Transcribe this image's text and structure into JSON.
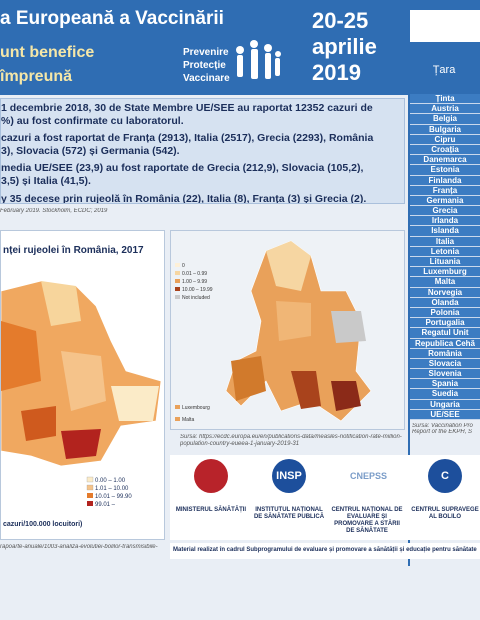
{
  "header": {
    "title": "a Europeană a Vaccinării",
    "slogan": [
      "unt benefice",
      "împreună"
    ],
    "motto": [
      "Prevenire",
      "Protecție",
      "Vaccinare"
    ],
    "dates": [
      "20-25",
      "aprilie",
      "2019"
    ]
  },
  "facts": {
    "lines": [
      "1 decembrie 2018, 30 de State Membre UE/SEE au raportat 12352 cazuri de",
      "%) au fost confirmate cu laboratorul.",
      "cazuri a fost raportat de Franța (2913), Italia (2517), Grecia (2293), România",
      "3), Slovacia (572) și Germania (542).",
      "media UE/SEE (23,9) au fost raportate de Grecia (212,9), Slovacia (105,2),",
      "3,5) și Italia (41,5).",
      "y 35 decese prin rujeolă în România (22), Italia (8), Franța (3) și Grecia (2)."
    ],
    "source": "February 2019. Stockholm, ECDC; 2019"
  },
  "romania_map": {
    "title": "nței rujeolei în România, 2017",
    "legend": [
      "0.00 – 1.00",
      "1.01 – 10.00",
      "10.01 – 99.90",
      "99.01 –"
    ],
    "unit": "cazuri/100.000 locuitori)",
    "source": "rapoarte-anuale/1003-analiza-evolutiei-bolilor-transmisibile-"
  },
  "europe_map": {
    "legend": [
      "0",
      "0.01 – 0.99",
      "1.00 – 9.99",
      "10.00 – 19.99",
      "Not included"
    ],
    "insets": [
      "Luxembourg",
      "Malta"
    ],
    "source": "Sursa: https://ecdc.europa.eu/en/publications-data/measles-notification-rate-million-population-country-eueea-1-january-2019-31"
  },
  "table": {
    "header": "Țara",
    "rows": [
      "Ținta",
      "Austria",
      "Belgia",
      "Bulgaria",
      "Cipru",
      "Croația",
      "Danemarca",
      "Estonia",
      "Finlanda",
      "Franța",
      "Germania",
      "Grecia",
      "Irlanda",
      "Islanda",
      "Italia",
      "Letonia",
      "Lituania",
      "Luxemburg",
      "Malta",
      "Norvegia",
      "Olanda",
      "Polonia",
      "Portugalia",
      "Regatul Unit",
      "Republica Cehă",
      "România",
      "Slovacia",
      "Slovenia",
      "Spania",
      "Suedia",
      "Ungaria",
      "UE/SEE"
    ],
    "source": [
      "Sursa: Vaccination Pro",
      "Report of the EKPH, S"
    ]
  },
  "logos": [
    {
      "mark": "",
      "label": "MINISTERUL SĂNĂTĂȚII"
    },
    {
      "mark": "INSP",
      "label": "INSTITUTUL NAȚIONAL DE SĂNĂTATE PUBLICĂ"
    },
    {
      "mark": "CNEPSS",
      "label": "CENTRUL NAȚIONAL DE EVALUARE ȘI PROMOVARE A STĂRII DE SĂNĂTATE"
    },
    {
      "mark": "C",
      "label": "CENTRUL SUPRAVEGE AL BOLILO"
    }
  ],
  "footer": "Material realizat în cadrul Subprogramului de evaluare și promovare a sănătății și educație pentru sănătate"
}
